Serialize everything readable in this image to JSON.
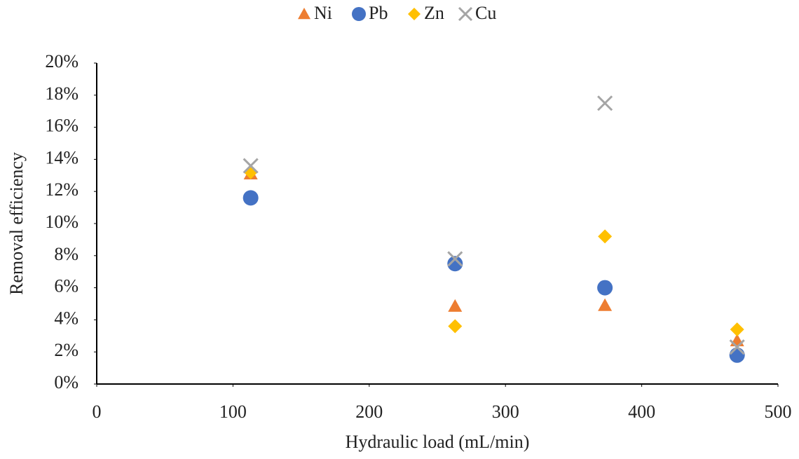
{
  "chart_data": {
    "type": "scatter",
    "x_label": "Hydraulic load (mL/min)",
    "y_label": "Removal efficiency",
    "x": [
      113,
      263,
      373,
      470
    ],
    "series": [
      {
        "name": "Ni",
        "color": "#ed7d31",
        "marker": "triangle",
        "values": [
          13.1,
          4.85,
          4.9,
          2.7
        ]
      },
      {
        "name": "Pb",
        "color": "#4472c4",
        "marker": "circle",
        "values": [
          11.6,
          7.5,
          6.0,
          1.8
        ]
      },
      {
        "name": "Zn",
        "color": "#ffc000",
        "marker": "diamond",
        "values": [
          13.2,
          3.6,
          9.2,
          3.4
        ]
      },
      {
        "name": "Cu",
        "color": "#a5a5a5",
        "marker": "cross",
        "values": [
          13.6,
          7.8,
          17.5,
          2.3
        ]
      }
    ],
    "xlim": [
      0,
      500
    ],
    "xticks": [
      0,
      100,
      200,
      300,
      400,
      500
    ],
    "ylim": [
      0,
      20
    ],
    "yticks": [
      {
        "value": 0,
        "label": "0%"
      },
      {
        "value": 2,
        "label": "2%"
      },
      {
        "value": 4,
        "label": "4%"
      },
      {
        "value": 6,
        "label": "6%"
      },
      {
        "value": 8,
        "label": "8%"
      },
      {
        "value": 10,
        "label": "10%"
      },
      {
        "value": 12,
        "label": "12%"
      },
      {
        "value": 14,
        "label": "14%"
      },
      {
        "value": 16,
        "label": "16%"
      },
      {
        "value": 18,
        "label": "18%"
      },
      {
        "value": 20,
        "label": "20%"
      }
    ],
    "legend": "top",
    "grid": false
  }
}
